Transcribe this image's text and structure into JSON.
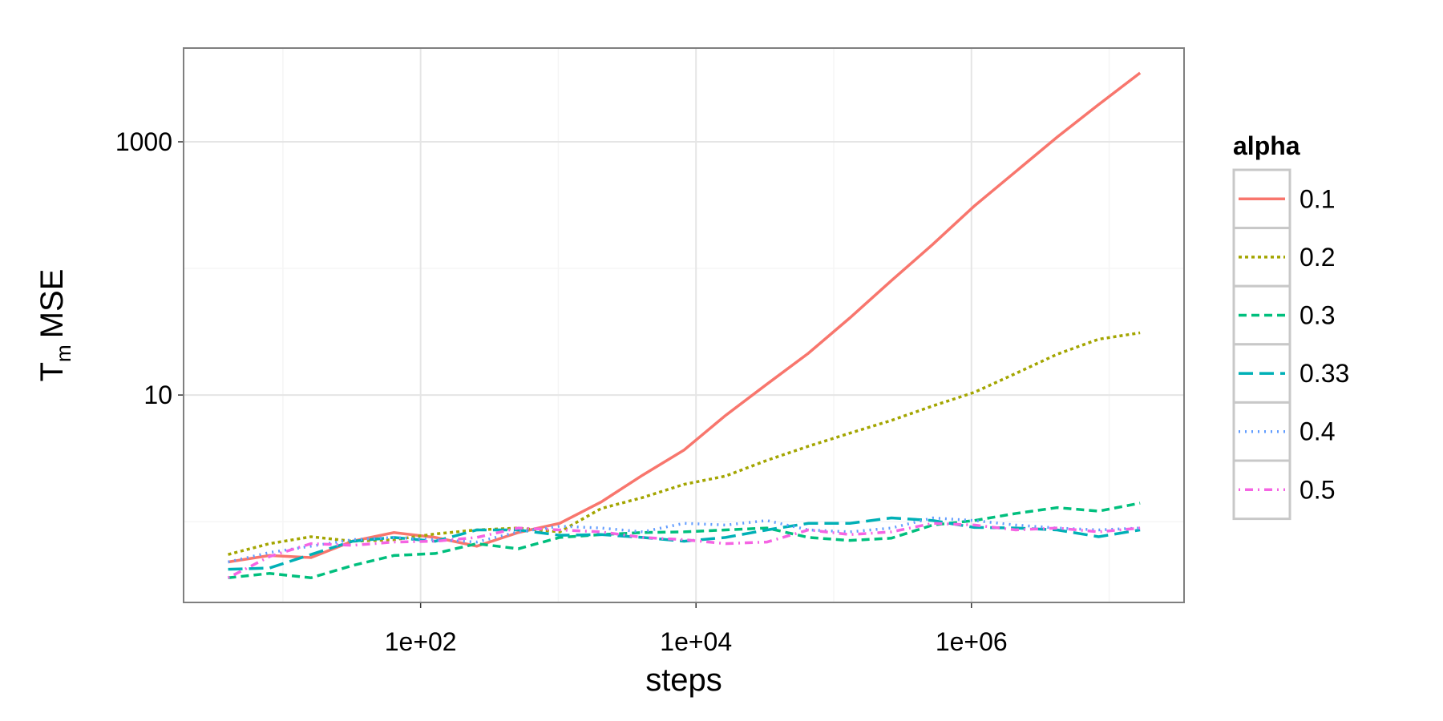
{
  "chart_data": {
    "type": "line",
    "xlabel": "steps",
    "ylabel": {
      "main": "T",
      "sub": "m",
      "rest": "MSE"
    },
    "legend_title": "alpha",
    "legend_position": "right",
    "x_log": true,
    "y_log": true,
    "grid": true,
    "x": [
      4,
      8,
      16,
      32,
      64,
      128,
      256,
      512,
      1024,
      2048,
      4096,
      8192,
      16384,
      32768,
      65536,
      131072,
      262144,
      524288,
      1048576,
      2097152,
      4194304,
      8388608,
      16777216
    ],
    "xlim": [
      1.9,
      35000000
    ],
    "ylim": [
      0.23,
      5500
    ],
    "xticks": [
      {
        "value": 100,
        "label": "1e+02"
      },
      {
        "value": 10000,
        "label": "1e+04"
      },
      {
        "value": 1000000,
        "label": "1e+06"
      }
    ],
    "x_minor_ticks": [
      10,
      1000,
      100000,
      10000000
    ],
    "yticks": [
      10,
      1000
    ],
    "y_minor_ticks": [
      1,
      100
    ],
    "series": [
      {
        "name": "0.1",
        "color": "#f8766d",
        "dash": "none",
        "values": [
          0.48,
          0.54,
          0.52,
          0.7,
          0.82,
          0.75,
          0.64,
          0.82,
          0.97,
          1.43,
          2.33,
          3.68,
          6.9,
          12.2,
          21.4,
          40.7,
          80,
          155,
          311,
          582,
          1089,
          1968,
          3500
        ]
      },
      {
        "name": "0.2",
        "color": "#a3a500",
        "dash": "4,4",
        "values": [
          0.55,
          0.67,
          0.76,
          0.7,
          0.72,
          0.8,
          0.86,
          0.89,
          0.83,
          1.27,
          1.55,
          1.97,
          2.29,
          3.05,
          3.94,
          5.0,
          6.3,
          8.2,
          10.5,
          14.8,
          21,
          27.6,
          31
        ]
      },
      {
        "name": "0.3",
        "color": "#00bf7d",
        "dash": "10,6",
        "values": [
          0.36,
          0.39,
          0.36,
          0.45,
          0.54,
          0.56,
          0.67,
          0.61,
          0.75,
          0.79,
          0.82,
          0.83,
          0.86,
          0.89,
          0.75,
          0.71,
          0.74,
          0.94,
          1.02,
          1.16,
          1.29,
          1.21,
          1.4
        ]
      },
      {
        "name": "0.33",
        "color": "#00b0b6",
        "dash": "18,8",
        "values": [
          0.42,
          0.43,
          0.55,
          0.7,
          0.75,
          0.7,
          0.86,
          0.86,
          0.78,
          0.79,
          0.75,
          0.7,
          0.75,
          0.86,
          0.97,
          0.97,
          1.07,
          1.02,
          0.9,
          0.89,
          0.86,
          0.76,
          0.86
        ]
      },
      {
        "name": "0.4",
        "color": "#619cff",
        "dash": "2,6",
        "values": [
          0.48,
          0.57,
          0.64,
          0.72,
          0.75,
          0.72,
          0.69,
          0.83,
          0.92,
          0.89,
          0.83,
          0.97,
          0.94,
          1.02,
          0.86,
          0.83,
          0.89,
          1.07,
          1.02,
          0.94,
          0.89,
          0.86,
          0.89
        ]
      },
      {
        "name": "0.5",
        "color": "#f564e3",
        "dash": "2,6,10,6",
        "values": [
          0.36,
          0.53,
          0.67,
          0.65,
          0.69,
          0.7,
          0.75,
          0.89,
          0.86,
          0.83,
          0.75,
          0.72,
          0.67,
          0.69,
          0.86,
          0.79,
          0.83,
          0.97,
          0.94,
          0.86,
          0.89,
          0.83,
          0.89
        ]
      }
    ]
  }
}
